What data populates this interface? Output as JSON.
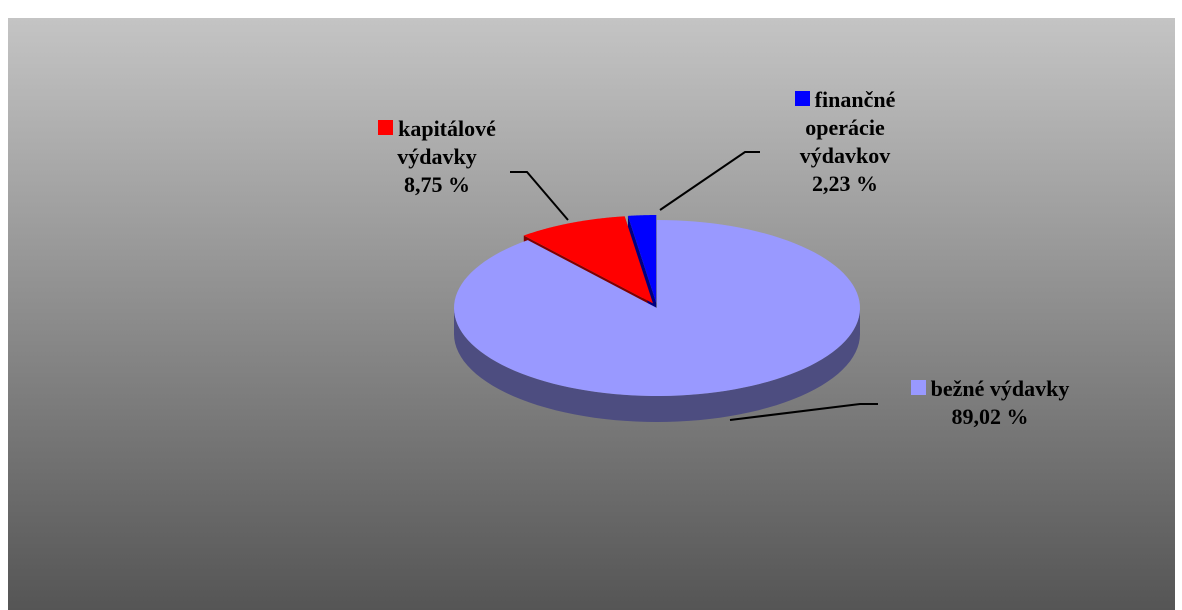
{
  "chart_data": {
    "type": "pie3d",
    "series": [
      {
        "name": "bežné výdavky",
        "color": "#9999ff",
        "values": [
          89.02
        ],
        "value_labels": [
          "89,02 %"
        ]
      },
      {
        "name": "kapitálové výdavky",
        "color": "#ff0000",
        "values": [
          8.75
        ],
        "value_labels": [
          "8,75 %"
        ]
      },
      {
        "name": "finančné operácie výdavkov",
        "color": "#0000ff",
        "values": [
          2.23
        ],
        "value_labels": [
          "2,23 %"
        ]
      }
    ]
  }
}
